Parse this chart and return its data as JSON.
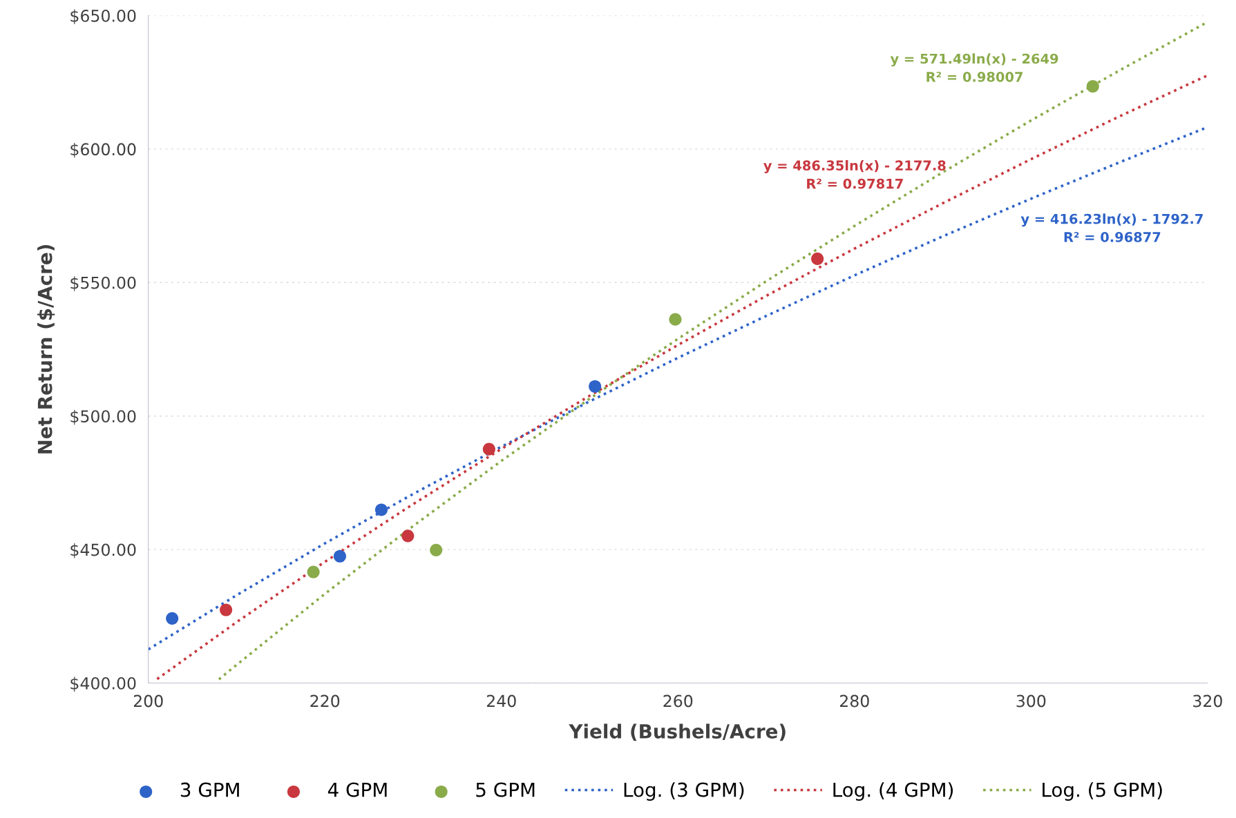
{
  "chart_data": {
    "type": "scatter",
    "xlabel": "Yield (Bushels/Acre)",
    "ylabel": "Net Return ($/Acre)",
    "xlim": [
      200,
      320
    ],
    "xticks": [
      200,
      220,
      240,
      260,
      280,
      300,
      320
    ],
    "ylim": [
      400,
      650
    ],
    "yticks": [
      {
        "value": 400,
        "label": "$400.00"
      },
      {
        "value": 450,
        "label": "$450.00"
      },
      {
        "value": 500,
        "label": "$500.00"
      },
      {
        "value": 550,
        "label": "$550.00"
      },
      {
        "value": 600,
        "label": "$600.00"
      },
      {
        "value": 650,
        "label": "$650.00"
      }
    ],
    "grid": "y",
    "legend": "bottom",
    "series": [
      {
        "name": "3 GPM",
        "marker": "circle",
        "color": "#2e63c8",
        "x": [
          202.7,
          221.7,
          226.4,
          250.6
        ],
        "values": [
          424.2,
          447.5,
          464.9,
          511.1
        ]
      },
      {
        "name": "4 GPM",
        "marker": "circle",
        "color": "#c8383e",
        "x": [
          208.8,
          229.4,
          238.6,
          275.8
        ],
        "values": [
          427.4,
          455.1,
          487.6,
          558.9
        ]
      },
      {
        "name": "5 GPM",
        "marker": "circle",
        "color": "#8aab4a",
        "x": [
          218.7,
          232.6,
          259.7,
          307.0
        ],
        "values": [
          441.6,
          449.8,
          536.2,
          623.5
        ]
      },
      {
        "name": "Log. (3 GPM)",
        "type": "line",
        "marker": "none",
        "line_style": "dotted",
        "color": "#2e63c8",
        "x": [
          200,
          210,
          220,
          230,
          240,
          250,
          260,
          270,
          280,
          290,
          300,
          310,
          320
        ],
        "values": [
          412.6,
          432.9,
          452.3,
          470.8,
          488.5,
          505.5,
          521.8,
          537.5,
          552.7,
          567.3,
          581.4,
          595.0,
          608.2
        ]
      },
      {
        "name": "Log. (4 GPM)",
        "type": "line",
        "marker": "none",
        "line_style": "dotted",
        "color": "#c8383e",
        "x": [
          201,
          210,
          220,
          230,
          240,
          250,
          260,
          270,
          280,
          290,
          300,
          310,
          320
        ],
        "values": [
          401.5,
          422.8,
          445.4,
          467.0,
          487.7,
          507.6,
          526.6,
          545.0,
          562.7,
          579.7,
          596.2,
          612.2,
          627.6
        ]
      },
      {
        "name": "Log. (5 GPM)",
        "type": "line",
        "marker": "none",
        "line_style": "dotted",
        "color": "#8aab4a",
        "x": [
          208,
          210,
          220,
          230,
          240,
          250,
          260,
          270,
          280,
          290,
          300,
          310,
          320
        ],
        "values": [
          401.4,
          406.8,
          433.4,
          458.8,
          483.2,
          506.5,
          528.9,
          550.5,
          571.2,
          591.3,
          610.7,
          629.4,
          647.6
        ]
      }
    ],
    "annotations": [
      "y = 416.23ln(x) - 1792.7\nR² = 0.96877",
      "y = 486.35ln(x) - 2177.8\nR² = 0.97817",
      "y = 571.49ln(x) - 2649\nR² = 0.98007"
    ]
  }
}
